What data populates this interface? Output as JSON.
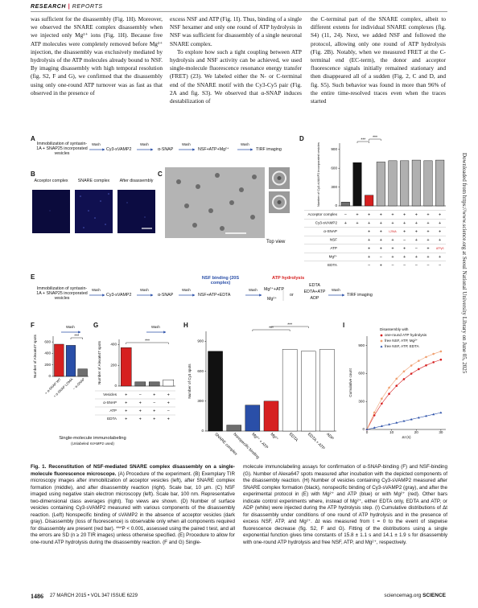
{
  "header": {
    "section": "RESEARCH",
    "separator": "|",
    "subsection": "REPORTS"
  },
  "body": {
    "columns": [
      [
        "was sufficient for the disassembly (Fig. 1H). Moreover, we observed the SNARE complex disassembly when we injected only Mg²⁺ ions (Fig. 1H). Because free ATP molecules were completely removed before Mg²⁺ injection, the disassembly was exclusively mediated by hydrolysis of the ATP molecules already bound to NSF. By imaging disassembly with high temporal resolution (fig. S2, F and G), we confirmed that the disassembly using only one-round ATP turnover was as fast as that observed in the presence of"
      ],
      [
        "excess NSF and ATP (Fig. 1I). Thus, binding of a single NSF hexamer and only one round of ATP hydrolysis in NSF was sufficient for disassembly of a single neuronal SNARE complex.",
        "To explore how such a tight coupling between ATP hydrolysis and NSF activity can be achieved, we used single-molecule fluorescence resonance energy transfer (FRET) (23). We labeled either the N- or C-terminal end of the SNARE motif with the Cy3-Cy5 pair (Fig. 2A and fig. S3). We observed that α-SNAP induces destabilization of"
      ],
      [
        "the C-terminal part of the SNARE complex, albeit to different extents for individual SNARE complexes (fig. S4) (11, 24). Next, we added NSF and followed the protocol, allowing only one round of ATP hydrolysis (Fig. 2B). Notably, when we measured FRET at the C-terminal end (EC-term), the donor and acceptor fluorescence signals initially remained stationary and then disappeared all of a sudden (Fig. 2, C and D, and fig. S5). Such behavior was found in more than 96% of the entire time-resolved traces even when the traces started"
      ]
    ]
  },
  "figure": {
    "panel_labels": [
      "A",
      "B",
      "C",
      "D",
      "E",
      "F",
      "G",
      "H",
      "I"
    ],
    "a": {
      "steps": [
        "Immobilization of syntaxin-1A + SNAP25 incorporated vesicles",
        "Cy3-sVAMP2",
        "α-SNAP",
        "NSF+ATP+Mg²⁺",
        "TIRF imaging"
      ],
      "wash": [
        "Wash",
        "Wash",
        "Wash",
        "Wash"
      ]
    },
    "b": {
      "labels": [
        "Acceptor complex",
        "SNARE complex",
        "After disassembly"
      ]
    },
    "c": {
      "label": "Top view"
    },
    "e": {
      "steps": [
        "Immobilization of syntaxin-1A + SNAP25 incorporated vesicles",
        "Cy3-sVAMP2",
        "α-SNAP"
      ],
      "binding_title": "NSF binding (20S complex)",
      "binding_step": "NSF+ATP+EDTA",
      "hydrolysis_title": "ATP hydrolysis",
      "options_left": [
        "Mg²⁺+ATP",
        "Mg²⁺"
      ],
      "or": "or",
      "options_right": [
        "EDTA",
        "EDTA+ATP",
        "ADP"
      ],
      "final": "TIRF imaging",
      "wash": [
        "Wash",
        "Wash",
        "Wash",
        "Wash",
        "Wash"
      ]
    },
    "fg": {
      "wash": [
        "Wash",
        "Wash"
      ],
      "title": "Single-molecule immunolabeling",
      "subtitle": "(Unlabeled sVAMP2 used)"
    }
  },
  "chart_data": [
    {
      "type": "bar",
      "ylabel": "Number of Cy3-sVAMP2 incorporated vesicles",
      "values": [
        60,
        690,
        170,
        700,
        720,
        720,
        730,
        720,
        730
      ],
      "colors": [
        "#6e6e6e",
        "#111111",
        "#d62020",
        "#b0b0b0",
        "#b0b0b0",
        "#b0b0b0",
        "#b0b0b0",
        "#b0b0b0",
        "#b0b0b0"
      ],
      "ylim": [
        0,
        1000
      ],
      "yticks": [
        0,
        300,
        600,
        900
      ],
      "annotations": [
        "***",
        "***"
      ],
      "table": [
        {
          "label": "Acceptor complex",
          "cells": [
            "−",
            "+",
            "+",
            "+",
            "+",
            "+",
            "+",
            "+",
            "+"
          ]
        },
        {
          "label": "Cy3-sVAMP2",
          "cells": [
            "+",
            "+",
            "+",
            "+",
            "+",
            "+",
            "+",
            "+",
            "+"
          ]
        },
        {
          "label": "α-SNAP",
          "cells": [
            null,
            null,
            "+",
            "+",
            "L294A",
            "+",
            "+",
            "+",
            "+"
          ]
        },
        {
          "label": "NSF",
          "cells": [
            null,
            null,
            "+",
            "+",
            "+",
            "−",
            "+",
            "+",
            "+"
          ]
        },
        {
          "label": "ATP",
          "cells": [
            null,
            null,
            "+",
            "+",
            "+",
            "+",
            "−",
            "+",
            "ATPγS"
          ]
        },
        {
          "label": "Mg²⁺",
          "cells": [
            null,
            null,
            "+",
            "−",
            "+",
            "+",
            "+",
            "+",
            "+"
          ]
        },
        {
          "label": "EDTA",
          "cells": [
            null,
            null,
            "−",
            "+",
            "−",
            "−",
            "−",
            "−",
            "−"
          ]
        }
      ]
    },
    {
      "type": "bar",
      "ylabel": "Number of Alexa647 spots",
      "categories": [
        "+ α-SNAP WT",
        "+ α-SNAP L294A",
        "− α-SNAP"
      ],
      "values": [
        560,
        540,
        130
      ],
      "colors": [
        "#d62020",
        "#2a4fa8",
        "#6e6e6e"
      ],
      "ylim": [
        0,
        700
      ],
      "yticks": [
        0,
        200,
        400,
        600
      ],
      "annotations": [
        "***"
      ]
    },
    {
      "type": "bar",
      "ylabel": "Number of Alexa647 spots",
      "values": [
        370,
        40,
        40,
        60
      ],
      "colors": [
        "#d62020",
        "#6e6e6e",
        "#6e6e6e",
        "#ffffff"
      ],
      "ylim": [
        0,
        450
      ],
      "yticks": [
        0,
        200,
        400
      ],
      "annotations": [
        "***"
      ],
      "table": [
        {
          "label": "Vesicles",
          "cells": [
            "+",
            "−",
            "+",
            "+"
          ]
        },
        {
          "label": "α-SNAP",
          "cells": [
            "+",
            "+",
            "−",
            "+"
          ]
        },
        {
          "label": "ATP",
          "cells": [
            "+",
            "+",
            "+",
            "−"
          ]
        },
        {
          "label": "EDTA",
          "cells": [
            "+",
            "+",
            "+",
            "+"
          ]
        }
      ]
    },
    {
      "type": "bar",
      "ylabel": "Number of Cy3 spots",
      "categories": [
        "SNARE complex",
        "Nonspecific binding",
        "Mg²⁺ + ATP",
        "Mg²⁺",
        "EDTA",
        "EDTA + ATP",
        "ADP"
      ],
      "values": [
        800,
        60,
        260,
        300,
        820,
        800,
        820
      ],
      "colors": [
        "#111111",
        "#6e6e6e",
        "#2a4fa8",
        "#d62020",
        "#ffffff",
        "#ffffff",
        "#ffffff"
      ],
      "ylim": [
        0,
        1000
      ],
      "yticks": [
        0,
        300,
        600,
        900
      ],
      "annotations": [
        "***",
        "***"
      ]
    },
    {
      "type": "scatter",
      "xlabel": "Δt (s)",
      "ylabel": "Cumulative count",
      "legend_title": "Disassembly with",
      "x": [
        0,
        3,
        6,
        9,
        12,
        15,
        18,
        21,
        24,
        27,
        30
      ],
      "xlim": [
        0,
        32
      ],
      "xticks": [
        0,
        10,
        20,
        30
      ],
      "ylim": [
        0,
        1000
      ],
      "yticks": [
        0,
        300,
        600,
        900
      ],
      "series": [
        {
          "name": "one-round ATP hydrolysis",
          "color": "#d62020",
          "marker": "circle",
          "values": [
            0,
            152,
            278,
            382,
            468,
            539,
            598,
            647,
            687,
            721,
            748
          ]
        },
        {
          "name": "free NSF, ATP, Mg²⁺",
          "color": "#f0a070",
          "marker": "circle",
          "values": [
            0,
            182,
            330,
            448,
            544,
            622,
            685,
            736,
            777,
            810,
            837
          ]
        },
        {
          "name": "free NSF, ATP, EDTA",
          "color": "#2a4fa8",
          "marker": "triangle",
          "values": [
            0,
            18,
            36,
            54,
            72,
            90,
            108,
            126,
            144,
            162,
            180
          ]
        }
      ]
    }
  ],
  "caption": {
    "label": "Fig. 1.",
    "title": "Reconstitution of NSF-mediated SNARE complex disassembly on a single-molecule fluorescence microscope.",
    "text_left": "(A) Procedure of the experiment. (B) Exemplary TIR microscopy images after immobilization of acceptor vesicles (left), after SNARE complex formation (middle), and after disassembly reaction (right). Scale bar, 10 μm. (C) NSF imaged using negative stain electron microscopy (left). Scale bar, 100 nm. Representative two-dimensional class averages (right). Top views are shown. (D) Number of surface vesicles containing Cy3-sVAMP2 measured with various components of the disassembly reaction. (Left) Nonspecific binding of sVAMP2 in the absence of acceptor vesicles (dark gray). Disassembly (loss of fluorescence) is observable only when all components required for disassembly are present (red bar). ***P < 0.001, assessed using the paired t test, and all the errors are SD (n ≥ 20 TIR images) unless otherwise specified. (E) Procedure to allow for one-round ATP hydrolysis during the disassembly reaction. (F and G) Single-",
    "text_right": "molecule immunolabeling assays for confirmation of α-SNAP-binding (F) and NSF-binding (G). Number of Alexa647 spots measured after incubation with the depicted components of the disassembly reaction. (H) Number of vesicles containing Cy3-sVAMP2 measured after SNARE complex formation (black), nonspecific binding of Cy3-sVAMP2 (gray), and after the experimental protocol in (E) with Mg²⁺ and ATP (blue) or with Mg²⁺ (red). Other bars indicate control experiments where, instead of Mg²⁺, either EDTA only, EDTA and ATP, or ADP (white) were injected during the ATP hydrolysis step. (I) Cumulative distributions of Δt for disassembly under conditions of one round of ATP hydrolysis and in the presence of excess NSF, ATP, and Mg²⁺. Δt was measured from t = 0 to the event of stepwise fluorescence decrease (fig. S2, F and G). Fitting of the distributions using a single exponential function gives time constants of 15.8 ± 1.1 s and 14.1 ± 1.9 s for disassembly with one-round ATP hydrolysis and free NSF, ATP, and Mg²⁺, respectively."
  },
  "footer": {
    "page": "1486",
    "issue": "27 MARCH 2015 • VOL 347 ISSUE 6229",
    "site": "sciencemag.org",
    "journal": "SCIENCE"
  },
  "side_note": "Downloaded from https://www.science.org at Seoul National University Library on June 05, 2025"
}
